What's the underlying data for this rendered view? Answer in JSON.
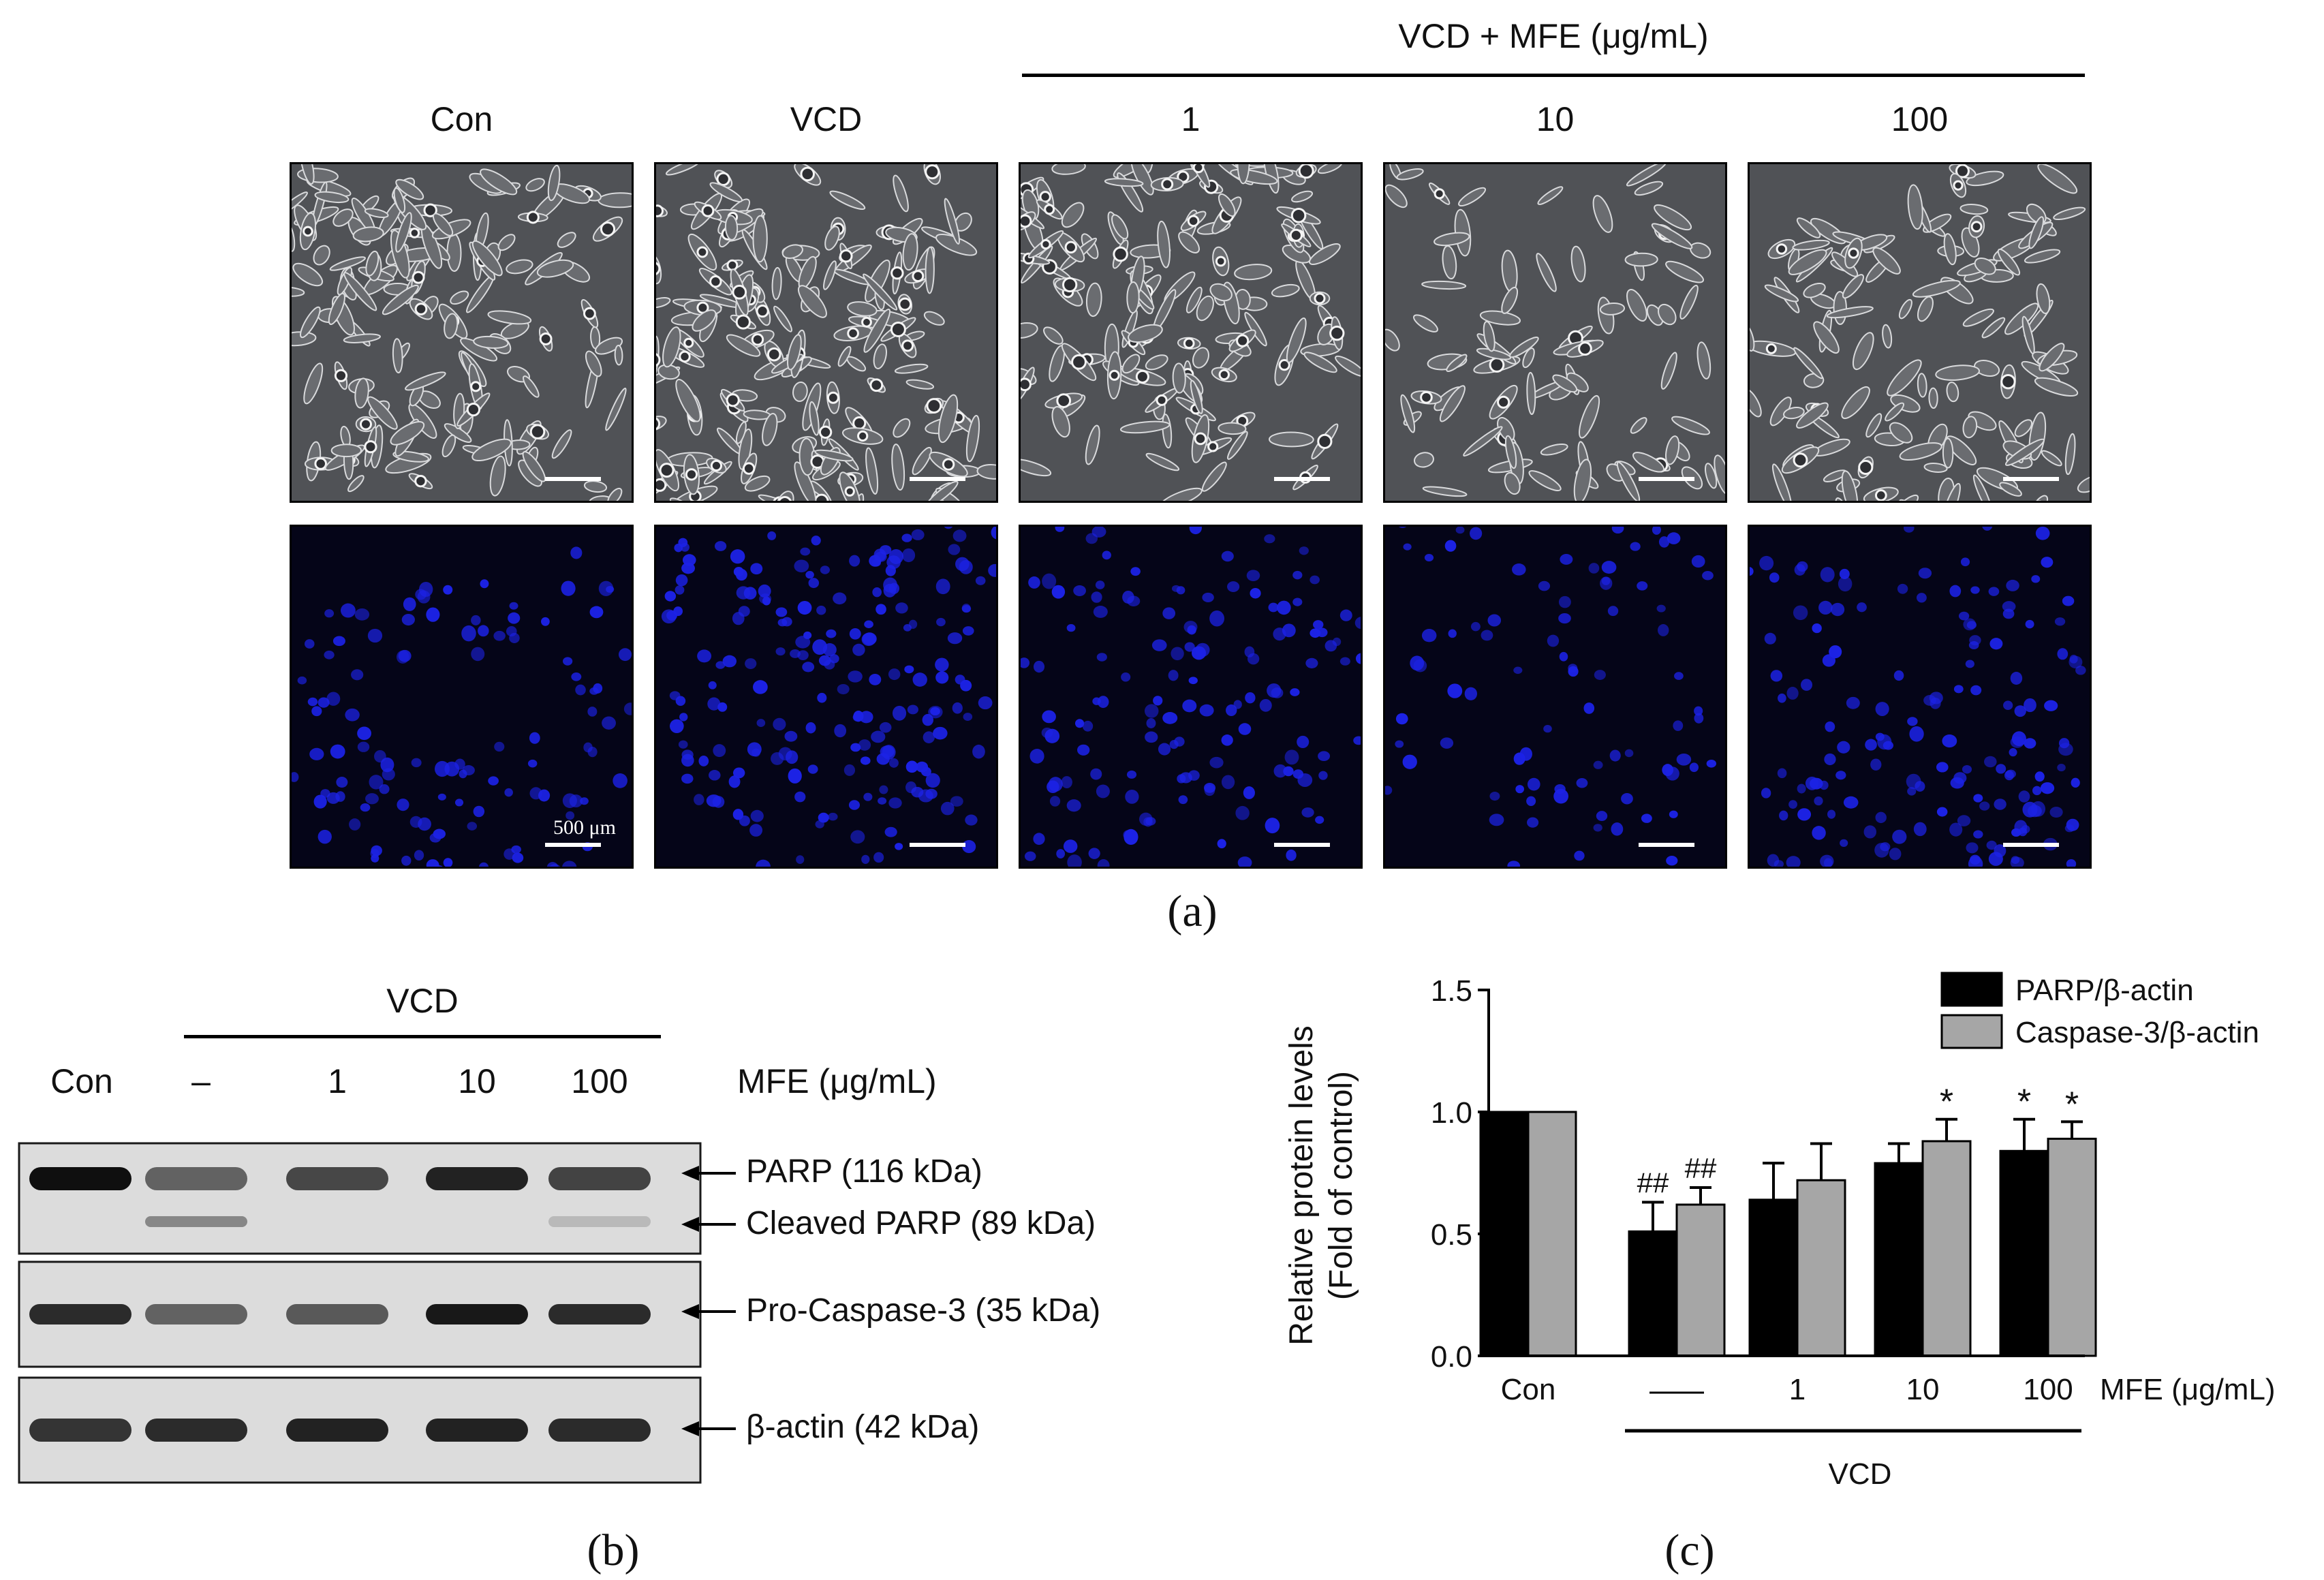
{
  "panel_a": {
    "group_header": "VCD + MFE (μg/mL)",
    "columns": [
      "Con",
      "VCD",
      "1",
      "10",
      "100"
    ],
    "scale_bar_label": "500 μm",
    "panel_label": "(a)",
    "colors": {
      "phase_bg": "#505256",
      "dapi_bg": "#050518",
      "nucleus": "#1c22e6"
    }
  },
  "panel_b": {
    "group_header": "VCD",
    "lanes": [
      "Con",
      "–",
      "1",
      "10",
      "100"
    ],
    "mfe_label": "MFE (μg/mL)",
    "band_labels": [
      "PARP (116 kDa)",
      "Cleaved PARP (89 kDa)",
      "Pro-Caspase-3 (35 kDa)",
      "β-actin (42 kDa)"
    ],
    "band_intensity": {
      "parp": [
        1.0,
        0.55,
        0.7,
        0.9,
        0.72
      ],
      "cleaved_parp": [
        0.0,
        0.35,
        0.0,
        0.0,
        0.08
      ],
      "pro_caspase3": [
        0.85,
        0.55,
        0.6,
        0.95,
        0.85
      ],
      "beta_actin": [
        0.8,
        0.85,
        0.9,
        0.9,
        0.85
      ]
    },
    "panel_label": "(b)"
  },
  "chart_data": {
    "type": "bar",
    "categories": [
      "Con",
      "—",
      "1",
      "10",
      "100"
    ],
    "series": [
      {
        "name": "PARP/β-actin",
        "color": "#000000",
        "values": [
          1.0,
          0.51,
          0.64,
          0.79,
          0.84
        ],
        "errors": [
          0,
          0.12,
          0.15,
          0.08,
          0.13
        ],
        "annotations": [
          "",
          "##",
          "",
          "",
          "*"
        ]
      },
      {
        "name": "Caspase-3/β-actin",
        "color": "#a6a6a6",
        "values": [
          1.0,
          0.62,
          0.72,
          0.88,
          0.89
        ],
        "errors": [
          0,
          0.07,
          0.15,
          0.09,
          0.07
        ],
        "annotations": [
          "",
          "##",
          "",
          "*",
          "*"
        ]
      }
    ],
    "ylabel": "Relative protein levels",
    "ylabel2": "(Fold of control)",
    "yticks": [
      "0.0",
      "0.5",
      "1.0",
      "1.5"
    ],
    "ylim": [
      0,
      1.5
    ],
    "x_unit_label": "MFE (μg/mL)",
    "group_label": "VCD",
    "legend": "top-right",
    "panel_label": "(c)"
  }
}
